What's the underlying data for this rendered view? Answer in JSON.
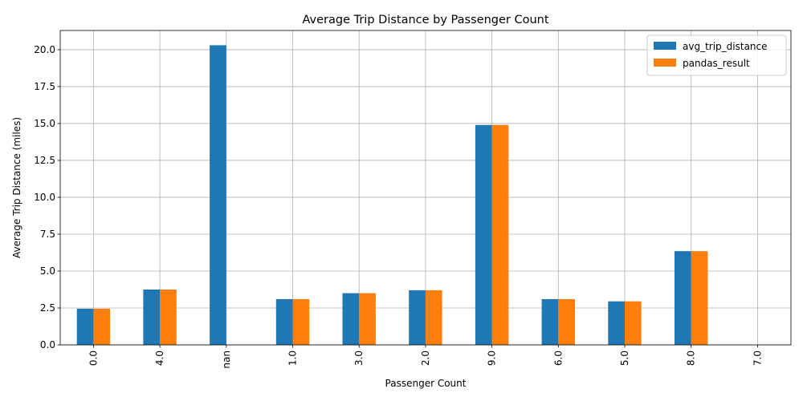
{
  "chart_data": {
    "type": "bar",
    "title": "Average Trip Distance by Passenger Count",
    "xlabel": "Passenger Count",
    "ylabel": "Average Trip Distance (miles)",
    "categories": [
      "0.0",
      "4.0",
      "nan",
      "1.0",
      "3.0",
      "2.0",
      "9.0",
      "6.0",
      "5.0",
      "8.0",
      "7.0"
    ],
    "series": [
      {
        "name": "avg_trip_distance",
        "color": "#1f77b4",
        "values": [
          2.45,
          3.75,
          20.3,
          3.1,
          3.5,
          3.7,
          14.9,
          3.1,
          2.95,
          6.35,
          0
        ]
      },
      {
        "name": "pandas_result",
        "color": "#ff7f0e",
        "values": [
          2.45,
          3.75,
          null,
          3.1,
          3.5,
          3.7,
          14.9,
          3.1,
          2.95,
          6.35,
          0
        ]
      }
    ],
    "ylim": [
      0,
      21.3
    ],
    "yticks": [
      "0.0",
      "2.5",
      "5.0",
      "7.5",
      "10.0",
      "12.5",
      "15.0",
      "17.5",
      "20.0"
    ],
    "grid": true,
    "legend_position": "top-right"
  }
}
